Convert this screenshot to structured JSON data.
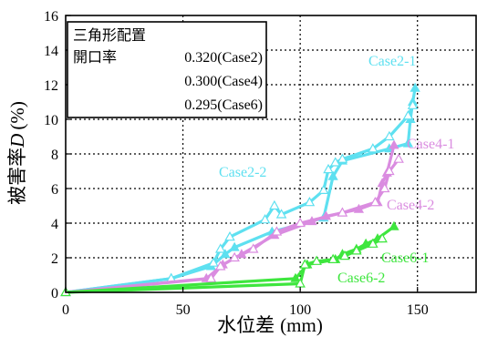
{
  "chart_data": {
    "type": "line",
    "xlabel": "水位差",
    "xunit": "(mm)",
    "ylabel_prefix": "被害率",
    "ylabel_var": "D",
    "ylabel_unit": "(%)",
    "xlim": [
      0,
      175
    ],
    "ylim": [
      0,
      16
    ],
    "xticks": [
      0,
      50,
      100,
      150
    ],
    "yticks": [
      0,
      2,
      4,
      6,
      8,
      10,
      12,
      14,
      16
    ],
    "grid": true,
    "legend": {
      "placement": "top-left",
      "title": "三角形配置",
      "label": "開口率",
      "entries": [
        "0.320(Case2)",
        "0.300(Case4)",
        "0.295(Case6)"
      ]
    },
    "colors": {
      "case2": "#5ee0f0",
      "case4": "#da8ce0",
      "case6": "#3ee63e"
    },
    "series": [
      {
        "name": "Case2-1",
        "color_key": "case2",
        "marker": "filled",
        "x": [
          0,
          45,
          62,
          68,
          72,
          88,
          110,
          114,
          118,
          138,
          146,
          147,
          148,
          149
        ],
        "y": [
          0,
          0.8,
          1.5,
          2.2,
          2.6,
          3.5,
          4.3,
          6.7,
          7.6,
          8.3,
          8.6,
          10.0,
          11.0,
          11.8
        ]
      },
      {
        "name": "Case2-2",
        "color_key": "case2",
        "marker": "open",
        "x": [
          0,
          45,
          63,
          66,
          70,
          85,
          89,
          92,
          104,
          110,
          112,
          115,
          118,
          131,
          138,
          146,
          148
        ],
        "y": [
          0,
          0.8,
          1.7,
          2.5,
          3.2,
          4.2,
          5.0,
          4.5,
          5.2,
          5.9,
          7.1,
          7.5,
          7.7,
          8.3,
          9.0,
          10.2,
          10.8
        ]
      },
      {
        "name": "Case4-1",
        "color_key": "case4",
        "marker": "filled",
        "x": [
          0,
          60,
          67,
          75,
          89,
          105,
          111,
          125,
          133,
          135,
          137,
          140
        ],
        "y": [
          0,
          0.8,
          1.6,
          2.2,
          3.3,
          4.1,
          4.4,
          4.8,
          5.2,
          6.3,
          6.9,
          8.5
        ]
      },
      {
        "name": "Case4-2",
        "color_key": "case4",
        "marker": "open",
        "x": [
          0,
          62,
          66,
          72,
          80,
          90,
          100,
          118,
          132,
          136,
          138,
          142
        ],
        "y": [
          0,
          0.8,
          1.5,
          2.0,
          2.5,
          3.5,
          4.0,
          4.6,
          5.2,
          6.0,
          7.0,
          7.7
        ]
      },
      {
        "name": "Case6-1",
        "color_key": "case6",
        "marker": "filled",
        "x": [
          0,
          98,
          103,
          115,
          118,
          124,
          128,
          133,
          140
        ],
        "y": [
          0,
          0.8,
          1.6,
          1.9,
          2.2,
          2.5,
          2.8,
          3.1,
          3.8
        ]
      },
      {
        "name": "Case6-2",
        "color_key": "case6",
        "marker": "open",
        "x": [
          0,
          100,
          102,
          107,
          114,
          119,
          124,
          131,
          135
        ],
        "y": [
          0,
          0.5,
          1.6,
          1.8,
          1.9,
          2.1,
          2.4,
          2.8,
          3.1
        ]
      }
    ],
    "series_labels": {
      "Case2-1": "Case2-1",
      "Case2-2": "Case2-2",
      "Case4-1": "Case4-1",
      "Case4-2": "Case4-2",
      "Case6-1": "Case6-1",
      "Case6-2": "Case6-2"
    }
  }
}
